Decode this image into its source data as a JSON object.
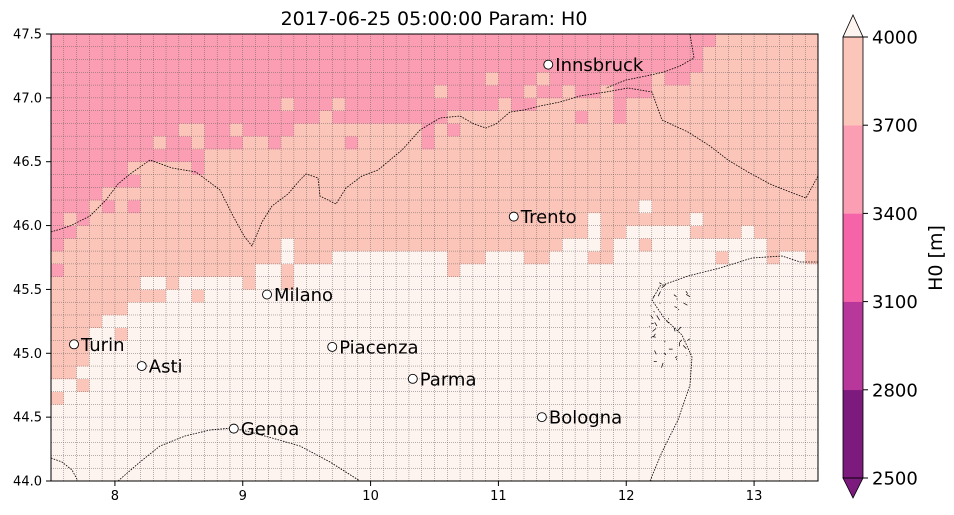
{
  "chart_data": {
    "type": "heatmap",
    "title": "2017-06-25 05:00:00 Param: H0",
    "xlabel": "",
    "ylabel": "",
    "xlim": [
      7.5,
      13.5
    ],
    "ylim": [
      44.0,
      47.5
    ],
    "xticks": [
      "8",
      "9",
      "10",
      "11",
      "12",
      "13"
    ],
    "yticks": [
      "44.0",
      "44.5",
      "45.0",
      "45.5",
      "46.0",
      "46.5",
      "47.0",
      "47.5"
    ],
    "grid_step": 0.1,
    "colorbar": {
      "label": "H0  [m]",
      "levels": [
        "2500",
        "2800",
        "3100",
        "3400",
        "3700",
        "4000"
      ],
      "colors": [
        "#7c1a7e",
        "#b8379a",
        "#f563a8",
        "#fb9eb3",
        "#fcc5b9",
        "#fdf3ef"
      ],
      "extend": "both"
    },
    "field_summary": [
      {
        "range": "3700-4000",
        "color": "#fcc5b9",
        "region": "central belt (Alps foothills, Po valley north)"
      },
      {
        "range": "3400-3700",
        "color": "#fb9eb3",
        "region": "northern Alps (north-west and north-centre)"
      },
      {
        "range": ">4000",
        "color": "#fdf3ef",
        "region": "southern Po valley and Apennines"
      }
    ],
    "cities": [
      {
        "name": "Innsbruck",
        "lon": 11.39,
        "lat": 47.26
      },
      {
        "name": "Trento",
        "lon": 11.12,
        "lat": 46.07
      },
      {
        "name": "Milano",
        "lon": 9.19,
        "lat": 45.46
      },
      {
        "name": "Turin",
        "lon": 7.68,
        "lat": 45.07
      },
      {
        "name": "Asti",
        "lon": 8.21,
        "lat": 44.9
      },
      {
        "name": "Piacenza",
        "lon": 9.7,
        "lat": 45.05
      },
      {
        "name": "Parma",
        "lon": 10.33,
        "lat": 44.8
      },
      {
        "name": "Bologna",
        "lon": 11.34,
        "lat": 44.5
      },
      {
        "name": "Genoa",
        "lon": 8.93,
        "lat": 44.41
      }
    ]
  }
}
